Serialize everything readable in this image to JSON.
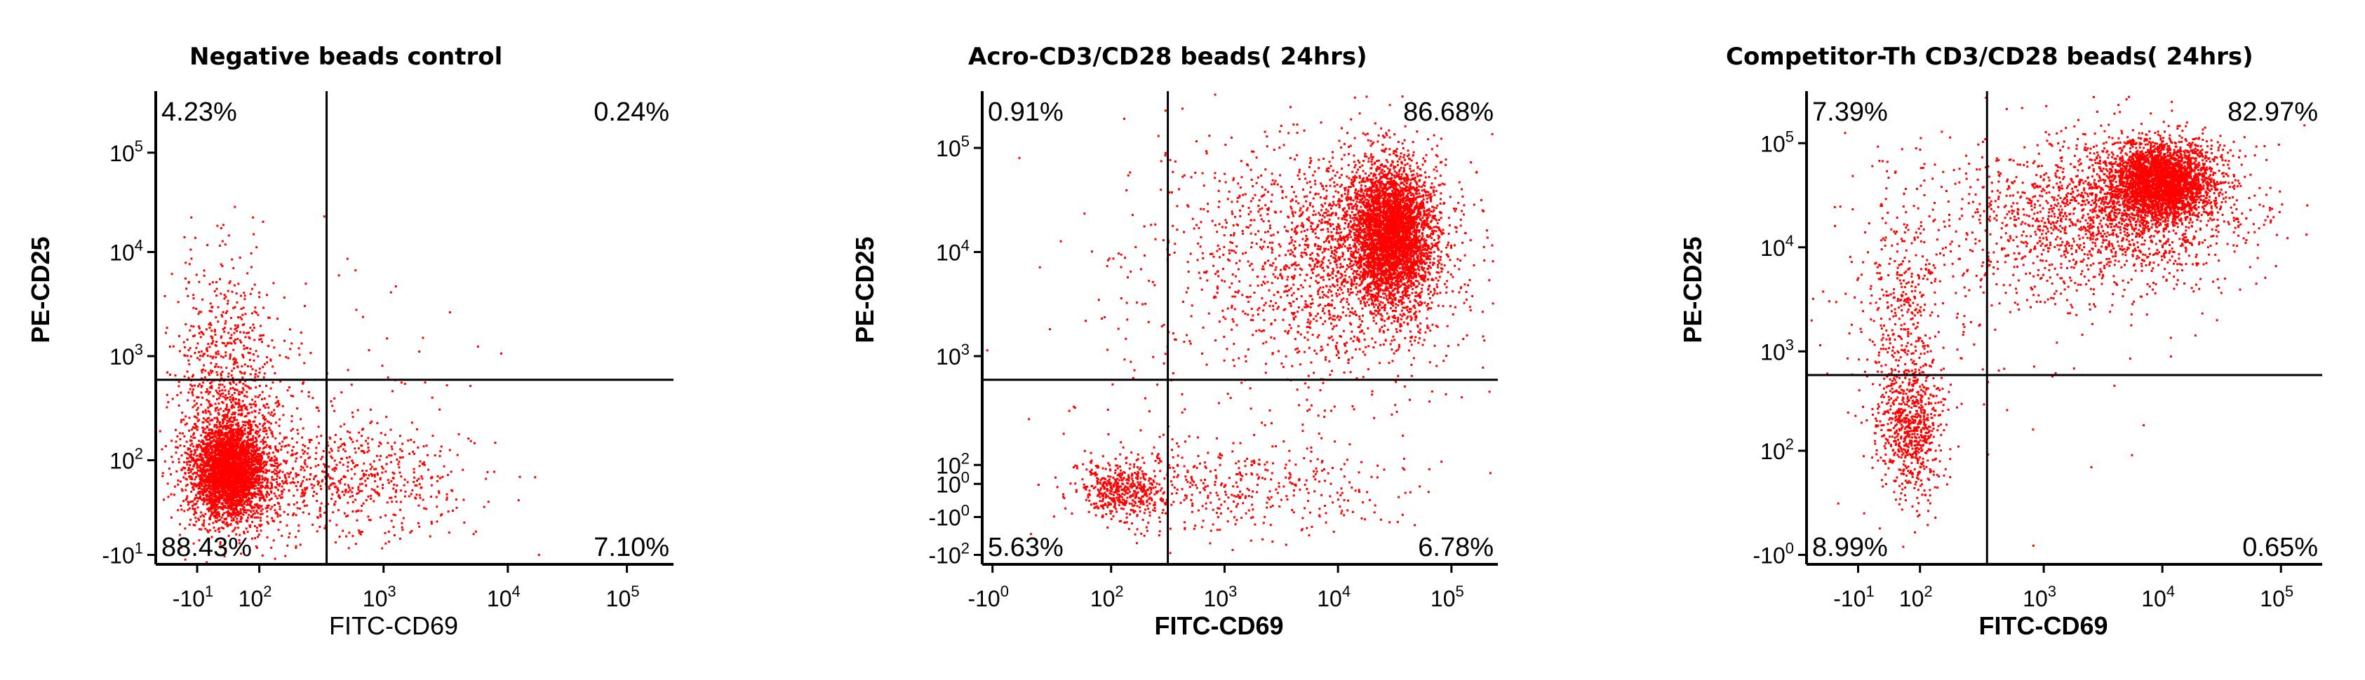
{
  "chart_data": [
    {
      "type": "scatter",
      "title": "Negative beads control",
      "xlabel": "FITC-CD69",
      "ylabel": "PE-CD25",
      "xlabel_bold": false,
      "color": "#ff0000",
      "xticks": [
        {
          "base": "-10",
          "exp": "1",
          "pos": 0.08
        },
        {
          "base": "10",
          "exp": "2",
          "pos": 0.2
        },
        {
          "base": "10",
          "exp": "3",
          "pos": 0.44
        },
        {
          "base": "10",
          "exp": "4",
          "pos": 0.68
        },
        {
          "base": "10",
          "exp": "5",
          "pos": 0.91
        }
      ],
      "yticks": [
        {
          "base": "-10",
          "exp": "1",
          "pos": 0.02
        },
        {
          "base": "10",
          "exp": "2",
          "pos": 0.22
        },
        {
          "base": "10",
          "exp": "3",
          "pos": 0.44
        },
        {
          "base": "10",
          "exp": "4",
          "pos": 0.66
        },
        {
          "base": "10",
          "exp": "5",
          "pos": 0.87
        }
      ],
      "gate": {
        "x": 0.33,
        "y": 0.39
      },
      "quadrants": {
        "upper_left": "4.23%",
        "upper_right": "0.24%",
        "lower_left": "88.43%",
        "lower_right": "7.10%"
      },
      "clusters": [
        {
          "cx": 0.14,
          "cy": 0.2,
          "sx": 0.035,
          "sy": 0.05,
          "n": 3200
        },
        {
          "cx": 0.15,
          "cy": 0.26,
          "sx": 0.06,
          "sy": 0.1,
          "n": 700
        },
        {
          "cx": 0.13,
          "cy": 0.46,
          "sx": 0.05,
          "sy": 0.1,
          "n": 380
        },
        {
          "cx": 0.36,
          "cy": 0.18,
          "sx": 0.12,
          "sy": 0.06,
          "n": 650
        },
        {
          "cx": 0.3,
          "cy": 0.32,
          "sx": 0.14,
          "sy": 0.14,
          "n": 150
        }
      ]
    },
    {
      "type": "scatter",
      "title": "Acro-CD3/CD28 beads( 24hrs)",
      "xlabel": "FITC-CD69",
      "ylabel": "PE-CD25",
      "xlabel_bold": true,
      "color": "#ff0000",
      "xticks": [
        {
          "base": "-10",
          "exp": "0",
          "pos": 0.02
        },
        {
          "base": "10",
          "exp": "2",
          "pos": 0.25
        },
        {
          "base": "10",
          "exp": "3",
          "pos": 0.47
        },
        {
          "base": "10",
          "exp": "4",
          "pos": 0.69
        },
        {
          "base": "10",
          "exp": "5",
          "pos": 0.91
        }
      ],
      "yticks": [
        {
          "base": "-10",
          "exp": "2",
          "pos": 0.02
        },
        {
          "base": "-10",
          "exp": "0",
          "pos": 0.1
        },
        {
          "base": "10",
          "exp": "0",
          "pos": 0.17
        },
        {
          "base": "10",
          "exp": "2",
          "pos": 0.21
        },
        {
          "base": "10",
          "exp": "3",
          "pos": 0.44
        },
        {
          "base": "10",
          "exp": "4",
          "pos": 0.66
        },
        {
          "base": "10",
          "exp": "5",
          "pos": 0.88
        }
      ],
      "gate": {
        "x": 0.36,
        "y": 0.39
      },
      "quadrants": {
        "upper_left": "0.91%",
        "upper_right": "86.68%",
        "lower_left": "5.63%",
        "lower_right": "6.78%"
      },
      "clusters": [
        {
          "cx": 0.79,
          "cy": 0.7,
          "sx": 0.04,
          "sy": 0.07,
          "n": 3600
        },
        {
          "cx": 0.73,
          "cy": 0.65,
          "sx": 0.1,
          "sy": 0.12,
          "n": 1400
        },
        {
          "cx": 0.56,
          "cy": 0.66,
          "sx": 0.14,
          "sy": 0.14,
          "n": 500
        },
        {
          "cx": 0.27,
          "cy": 0.16,
          "sx": 0.04,
          "sy": 0.03,
          "n": 450
        },
        {
          "cx": 0.48,
          "cy": 0.16,
          "sx": 0.16,
          "sy": 0.05,
          "n": 420
        },
        {
          "cx": 0.5,
          "cy": 0.45,
          "sx": 0.22,
          "sy": 0.2,
          "n": 180
        }
      ]
    },
    {
      "type": "scatter",
      "title": "Competitor-Th CD3/CD28 beads( 24hrs)",
      "xlabel": "FITC-CD69",
      "ylabel": "PE-CD25",
      "xlabel_bold": true,
      "color": "#ff0000",
      "xticks": [
        {
          "base": "-10",
          "exp": "1",
          "pos": 0.1
        },
        {
          "base": "10",
          "exp": "2",
          "pos": 0.22
        },
        {
          "base": "10",
          "exp": "3",
          "pos": 0.46
        },
        {
          "base": "10",
          "exp": "4",
          "pos": 0.69
        },
        {
          "base": "10",
          "exp": "5",
          "pos": 0.92
        }
      ],
      "yticks": [
        {
          "base": "-10",
          "exp": "0",
          "pos": 0.02
        },
        {
          "base": "10",
          "exp": "2",
          "pos": 0.24
        },
        {
          "base": "10",
          "exp": "3",
          "pos": 0.45
        },
        {
          "base": "10",
          "exp": "4",
          "pos": 0.67
        },
        {
          "base": "10",
          "exp": "5",
          "pos": 0.89
        }
      ],
      "gate": {
        "x": 0.35,
        "y": 0.4
      },
      "quadrants": {
        "upper_left": "7.39%",
        "upper_right": "82.97%",
        "lower_left": "8.99%",
        "lower_right": "0.65%"
      },
      "clusters": [
        {
          "cx": 0.68,
          "cy": 0.81,
          "sx": 0.05,
          "sy": 0.04,
          "n": 3000
        },
        {
          "cx": 0.62,
          "cy": 0.75,
          "sx": 0.12,
          "sy": 0.08,
          "n": 1400
        },
        {
          "cx": 0.46,
          "cy": 0.7,
          "sx": 0.13,
          "sy": 0.09,
          "n": 400
        },
        {
          "cx": 0.2,
          "cy": 0.28,
          "sx": 0.03,
          "sy": 0.07,
          "n": 650
        },
        {
          "cx": 0.18,
          "cy": 0.52,
          "sx": 0.04,
          "sy": 0.14,
          "n": 380
        },
        {
          "cx": 0.32,
          "cy": 0.58,
          "sx": 0.18,
          "sy": 0.2,
          "n": 200
        }
      ]
    }
  ]
}
